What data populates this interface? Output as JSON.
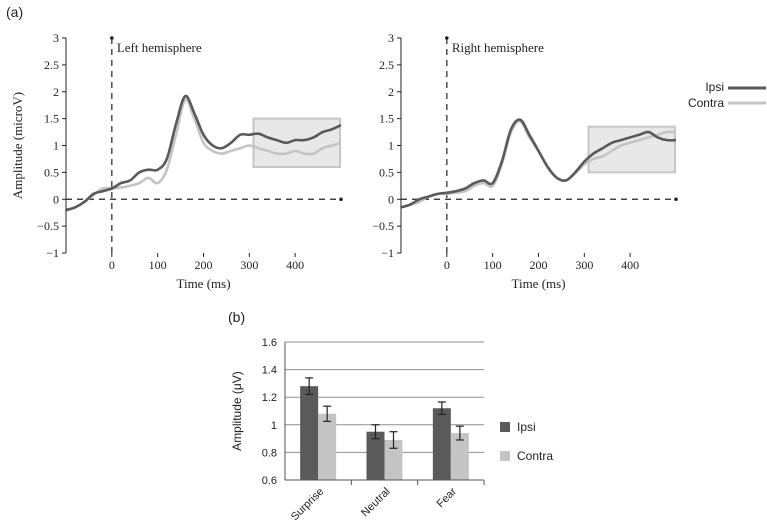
{
  "panel_labels": [
    "(a)",
    "(b)"
  ],
  "legend_a": {
    "ipsi": "Ipsi",
    "contra": "Contra"
  },
  "legend_b": {
    "ipsi": "Ipsi",
    "contra": "Contra"
  },
  "colors": {
    "ipsi": "#5a5a5a",
    "contra": "#c4c4c4",
    "box_fill": "#e8e8e8",
    "box_stroke": "#c6c6c6"
  },
  "chart_data": [
    {
      "type": "line",
      "title": "Left hemisphere",
      "xlabel": "Time (ms)",
      "ylabel": "Amplitude (microV)",
      "xlim": [
        -100,
        500
      ],
      "ylim": [
        -1,
        3
      ],
      "xticks": [
        "0",
        "100",
        "200",
        "300",
        "400"
      ],
      "yticks": [
        "−1",
        "−0.5",
        "0",
        "0.5",
        "1",
        "1.5",
        "2",
        "2.5",
        "3"
      ],
      "highlight_window_ms": [
        320,
        500
      ],
      "highlight_amplitude": [
        0.6,
        1.5
      ],
      "x": [
        -100,
        -80,
        -60,
        -40,
        -20,
        0,
        20,
        40,
        60,
        80,
        100,
        120,
        140,
        160,
        180,
        200,
        220,
        240,
        260,
        280,
        300,
        320,
        340,
        360,
        380,
        400,
        420,
        440,
        460,
        480,
        500
      ],
      "series": [
        {
          "name": "Ipsi",
          "values": [
            -0.2,
            -0.15,
            -0.05,
            0.1,
            0.15,
            0.2,
            0.3,
            0.35,
            0.5,
            0.55,
            0.55,
            0.75,
            1.4,
            1.92,
            1.6,
            1.2,
            1.0,
            0.95,
            1.05,
            1.2,
            1.2,
            1.22,
            1.15,
            1.1,
            1.05,
            1.1,
            1.1,
            1.15,
            1.25,
            1.3,
            1.38
          ]
        },
        {
          "name": "Contra",
          "values": [
            -0.2,
            -0.15,
            -0.05,
            0.08,
            0.2,
            0.2,
            0.22,
            0.25,
            0.3,
            0.4,
            0.3,
            0.55,
            1.2,
            1.85,
            1.5,
            1.05,
            0.9,
            0.85,
            0.9,
            0.95,
            1.0,
            0.95,
            0.9,
            0.85,
            0.85,
            0.9,
            0.85,
            0.85,
            0.95,
            1.0,
            1.05
          ]
        }
      ]
    },
    {
      "type": "line",
      "title": "Right hemisphere",
      "xlabel": "Time (ms)",
      "ylabel": "",
      "xlim": [
        -100,
        500
      ],
      "ylim": [
        -1,
        3
      ],
      "xticks": [
        "0",
        "100",
        "200",
        "300",
        "400"
      ],
      "yticks": [
        "−1",
        "−0.5",
        "0",
        "0.5",
        "1",
        "1.5",
        "2",
        "2.5",
        "3"
      ],
      "highlight_window_ms": [
        320,
        500
      ],
      "highlight_amplitude": [
        0.5,
        1.35
      ],
      "x": [
        -100,
        -80,
        -60,
        -40,
        -20,
        0,
        20,
        40,
        60,
        80,
        100,
        120,
        140,
        160,
        180,
        200,
        220,
        240,
        260,
        280,
        300,
        320,
        340,
        360,
        380,
        400,
        420,
        440,
        460,
        480,
        500
      ],
      "series": [
        {
          "name": "Ipsi",
          "values": [
            -0.15,
            -0.1,
            0.0,
            0.05,
            0.1,
            0.12,
            0.15,
            0.2,
            0.3,
            0.35,
            0.3,
            0.7,
            1.3,
            1.48,
            1.2,
            0.9,
            0.6,
            0.4,
            0.35,
            0.5,
            0.7,
            0.85,
            0.95,
            1.05,
            1.1,
            1.15,
            1.2,
            1.25,
            1.15,
            1.1,
            1.1
          ]
        },
        {
          "name": "Contra",
          "values": [
            -0.15,
            -0.1,
            -0.05,
            0.05,
            0.1,
            0.1,
            0.12,
            0.15,
            0.25,
            0.3,
            0.25,
            0.65,
            1.25,
            1.45,
            1.15,
            0.9,
            0.6,
            0.4,
            0.35,
            0.48,
            0.65,
            0.75,
            0.8,
            0.9,
            1.0,
            1.05,
            1.1,
            1.15,
            1.2,
            1.25,
            1.25
          ]
        }
      ]
    },
    {
      "type": "bar",
      "title": "",
      "xlabel": "",
      "ylabel": "Amplitude (μV)",
      "ylim": [
        0.6,
        1.6
      ],
      "yticks": [
        "0.6",
        "0.8",
        "1",
        "1.2",
        "1.4",
        "1.6"
      ],
      "grid": true,
      "legend": "right",
      "categories": [
        "Surprise",
        "Neutral",
        "Fear"
      ],
      "series": [
        {
          "name": "Ipsi",
          "values": [
            1.28,
            0.95,
            1.12
          ],
          "errors": [
            0.06,
            0.05,
            0.045
          ]
        },
        {
          "name": "Contra",
          "values": [
            1.08,
            0.89,
            0.94
          ],
          "errors": [
            0.055,
            0.06,
            0.05
          ]
        }
      ]
    }
  ]
}
